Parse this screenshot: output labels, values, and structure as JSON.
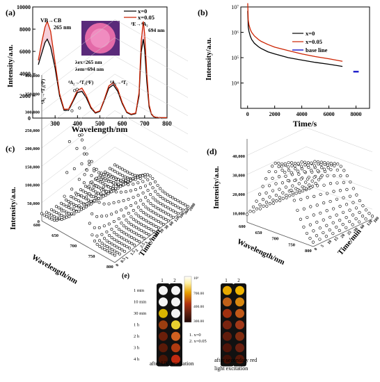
{
  "chart_data": [
    {
      "panel": "(a)",
      "type": "line",
      "xlabel": "Wavelength/nm",
      "ylabel": "Intensity/a.u.",
      "xlim": [
        200,
        800
      ],
      "ylim": [
        0,
        10000
      ],
      "xticks": [
        "300",
        "400",
        "500",
        "600",
        "700",
        "800"
      ],
      "yticks": [
        "0",
        "2000",
        "4000",
        "6000",
        "8000",
        "10000"
      ],
      "legend": [
        "x=0",
        "x=0.05"
      ],
      "series": [
        {
          "name": "x=0",
          "color": "#000000",
          "x": [
            225,
            240,
            255,
            265,
            280,
            300,
            320,
            340,
            360,
            380,
            400,
            420,
            440,
            460,
            480,
            500,
            520,
            540,
            560,
            580,
            600,
            620,
            640,
            660,
            675,
            685,
            694,
            700,
            710,
            720,
            730,
            740,
            750,
            770,
            800
          ],
          "y": [
            4800,
            5800,
            6800,
            7100,
            6400,
            4500,
            2000,
            700,
            700,
            1500,
            2300,
            2400,
            1800,
            900,
            450,
            600,
            1600,
            2700,
            3000,
            2400,
            1300,
            500,
            300,
            400,
            2000,
            6000,
            7100,
            6200,
            3200,
            1000,
            350,
            120,
            60,
            40,
            30
          ]
        },
        {
          "name": "x=0.05",
          "color": "#cc2200",
          "x": [
            225,
            240,
            255,
            265,
            280,
            300,
            320,
            340,
            360,
            380,
            400,
            420,
            440,
            460,
            480,
            500,
            520,
            540,
            560,
            580,
            600,
            620,
            640,
            660,
            675,
            685,
            694,
            700,
            710,
            720,
            730,
            740,
            750,
            770,
            800
          ],
          "y": [
            5200,
            6800,
            8200,
            8700,
            7800,
            5000,
            2200,
            800,
            800,
            1600,
            2500,
            2700,
            2000,
            1000,
            500,
            650,
            1700,
            2900,
            3200,
            2600,
            1400,
            550,
            350,
            450,
            2300,
            7000,
            8700,
            7600,
            3900,
            1200,
            400,
            150,
            70,
            45,
            35
          ]
        }
      ],
      "annotations": [
        "VB→CB",
        "265 nm",
        "λex=265 nm",
        "λem=694 nm",
        "⁴A₂→⁴T₁(⁴P)",
        "⁴A₂→⁴T₁(⁴F)",
        "⁴A₂→⁴T₂",
        "²E→⁴A₂",
        "694 nm"
      ]
    },
    {
      "panel": "(b)",
      "type": "line",
      "xlabel": "Time/s",
      "ylabel": "Intensity/a.u.",
      "scale": "log-y",
      "xlim": [
        -500,
        9000
      ],
      "ylim": [
        1000,
        10000000
      ],
      "xticks": [
        "0",
        "2000",
        "4000",
        "6000",
        "8000"
      ],
      "yticks": [
        "10⁴",
        "10⁵",
        "10⁶",
        "10⁷"
      ],
      "legend": [
        "x=0",
        "x=0.05",
        "base line"
      ],
      "series": [
        {
          "name": "x=0",
          "color": "#000000",
          "x": [
            10,
            50,
            100,
            200,
            300,
            500,
            800,
            1000,
            1500,
            2000,
            3000,
            4000,
            5000,
            6000,
            7000
          ],
          "y": [
            7000000,
            1600000,
            1100000,
            700000,
            520000,
            370000,
            270000,
            230000,
            170000,
            140000,
            100000,
            80000,
            65000,
            55000,
            45000
          ]
        },
        {
          "name": "x=0.05",
          "color": "#cc2200",
          "x": [
            10,
            50,
            100,
            200,
            300,
            500,
            800,
            1000,
            1500,
            2000,
            3000,
            4000,
            5000,
            6000,
            7000
          ],
          "y": [
            14000000,
            3000000,
            2000000,
            1300000,
            1000000,
            720000,
            520000,
            440000,
            330000,
            260000,
            190000,
            140000,
            110000,
            90000,
            72000
          ]
        },
        {
          "name": "base line",
          "color": "#2222cc",
          "x": [
            7800,
            7900,
            8000,
            8100,
            8200
          ],
          "y": [
            28000,
            28000,
            28000,
            28000,
            28000
          ]
        }
      ]
    },
    {
      "panel": "(c)",
      "type": "scatter",
      "xlabel": "Wavelength/nm",
      "ylabel": "Intensity/a.u.",
      "zlabel": "Time/min",
      "wavelength_ticks": [
        "600",
        "650",
        "700",
        "750",
        "800"
      ],
      "intensity_ticks": [
        "0",
        "50,000",
        "100,000",
        "150,000",
        "200,000",
        "250,000",
        "300,000",
        "350,000",
        "400,000"
      ],
      "time_ticks": [
        "0",
        "0.5",
        "1",
        "1.5",
        "2",
        "2.5",
        "3",
        "5",
        "10",
        "20",
        "30",
        "60",
        "120",
        "180",
        "360",
        "2000"
      ],
      "peak_wavelength": 694,
      "peak_intensity": [
        400000,
        270000,
        210000,
        180000,
        150000,
        130000,
        115000,
        100000,
        85000,
        72000,
        62000,
        52000,
        45000,
        38000,
        32000,
        25000
      ]
    },
    {
      "panel": "(d)",
      "type": "scatter",
      "xlabel": "Wavelength/nm",
      "ylabel": "Intensity/a.u.",
      "zlabel": "Time/min",
      "wavelength_ticks": [
        "600",
        "650",
        "700",
        "750",
        "800"
      ],
      "intensity_ticks": [
        "10,000",
        "20,000",
        "30,000",
        "40,000"
      ],
      "time_ticks": [
        "0",
        "5",
        "10",
        "15",
        "20",
        "25",
        "30",
        "60",
        "120",
        "180"
      ],
      "peak_intensity": [
        42000,
        40000,
        39000,
        37000,
        36000,
        34000,
        33000,
        31000,
        29000,
        27000
      ]
    },
    {
      "panel": "(e)",
      "type": "heatmap",
      "columns": [
        "1",
        "2"
      ],
      "rows": [
        "1 min",
        "10 min",
        "30 min",
        "1 h",
        "2 h",
        "3 h",
        "4 h"
      ],
      "scale_labels": [
        "10³",
        "700.00",
        "400.00",
        "300.00"
      ],
      "notes": [
        "1. x=0",
        "2. x=0.05"
      ],
      "uv_colors": [
        [
          "#f4f4f4",
          "#f4f4f4"
        ],
        [
          "#f4f4f4",
          "#f4f4f4"
        ],
        [
          "#d8b400",
          "#f4f4f4"
        ],
        [
          "#9a3e10",
          "#e8d030"
        ],
        [
          "#6a1f0a",
          "#d06020"
        ],
        [
          "#5a1a08",
          "#b03a10"
        ],
        [
          "#4a1506",
          "#c02a10"
        ]
      ],
      "red_colors": [
        [
          "#e6a800",
          "#f0b400"
        ],
        [
          "#c06018",
          "#d88810"
        ],
        [
          "#a03010",
          "#c05818"
        ],
        [
          "#7a2410",
          "#a03818"
        ],
        [
          "#601c0c",
          "#802c10"
        ],
        [
          "#501408",
          "#6a2010"
        ],
        [
          "#401006",
          "#581808"
        ]
      ],
      "captions": [
        "after UV irradiation",
        "after secondary red",
        "light excitation"
      ]
    }
  ]
}
